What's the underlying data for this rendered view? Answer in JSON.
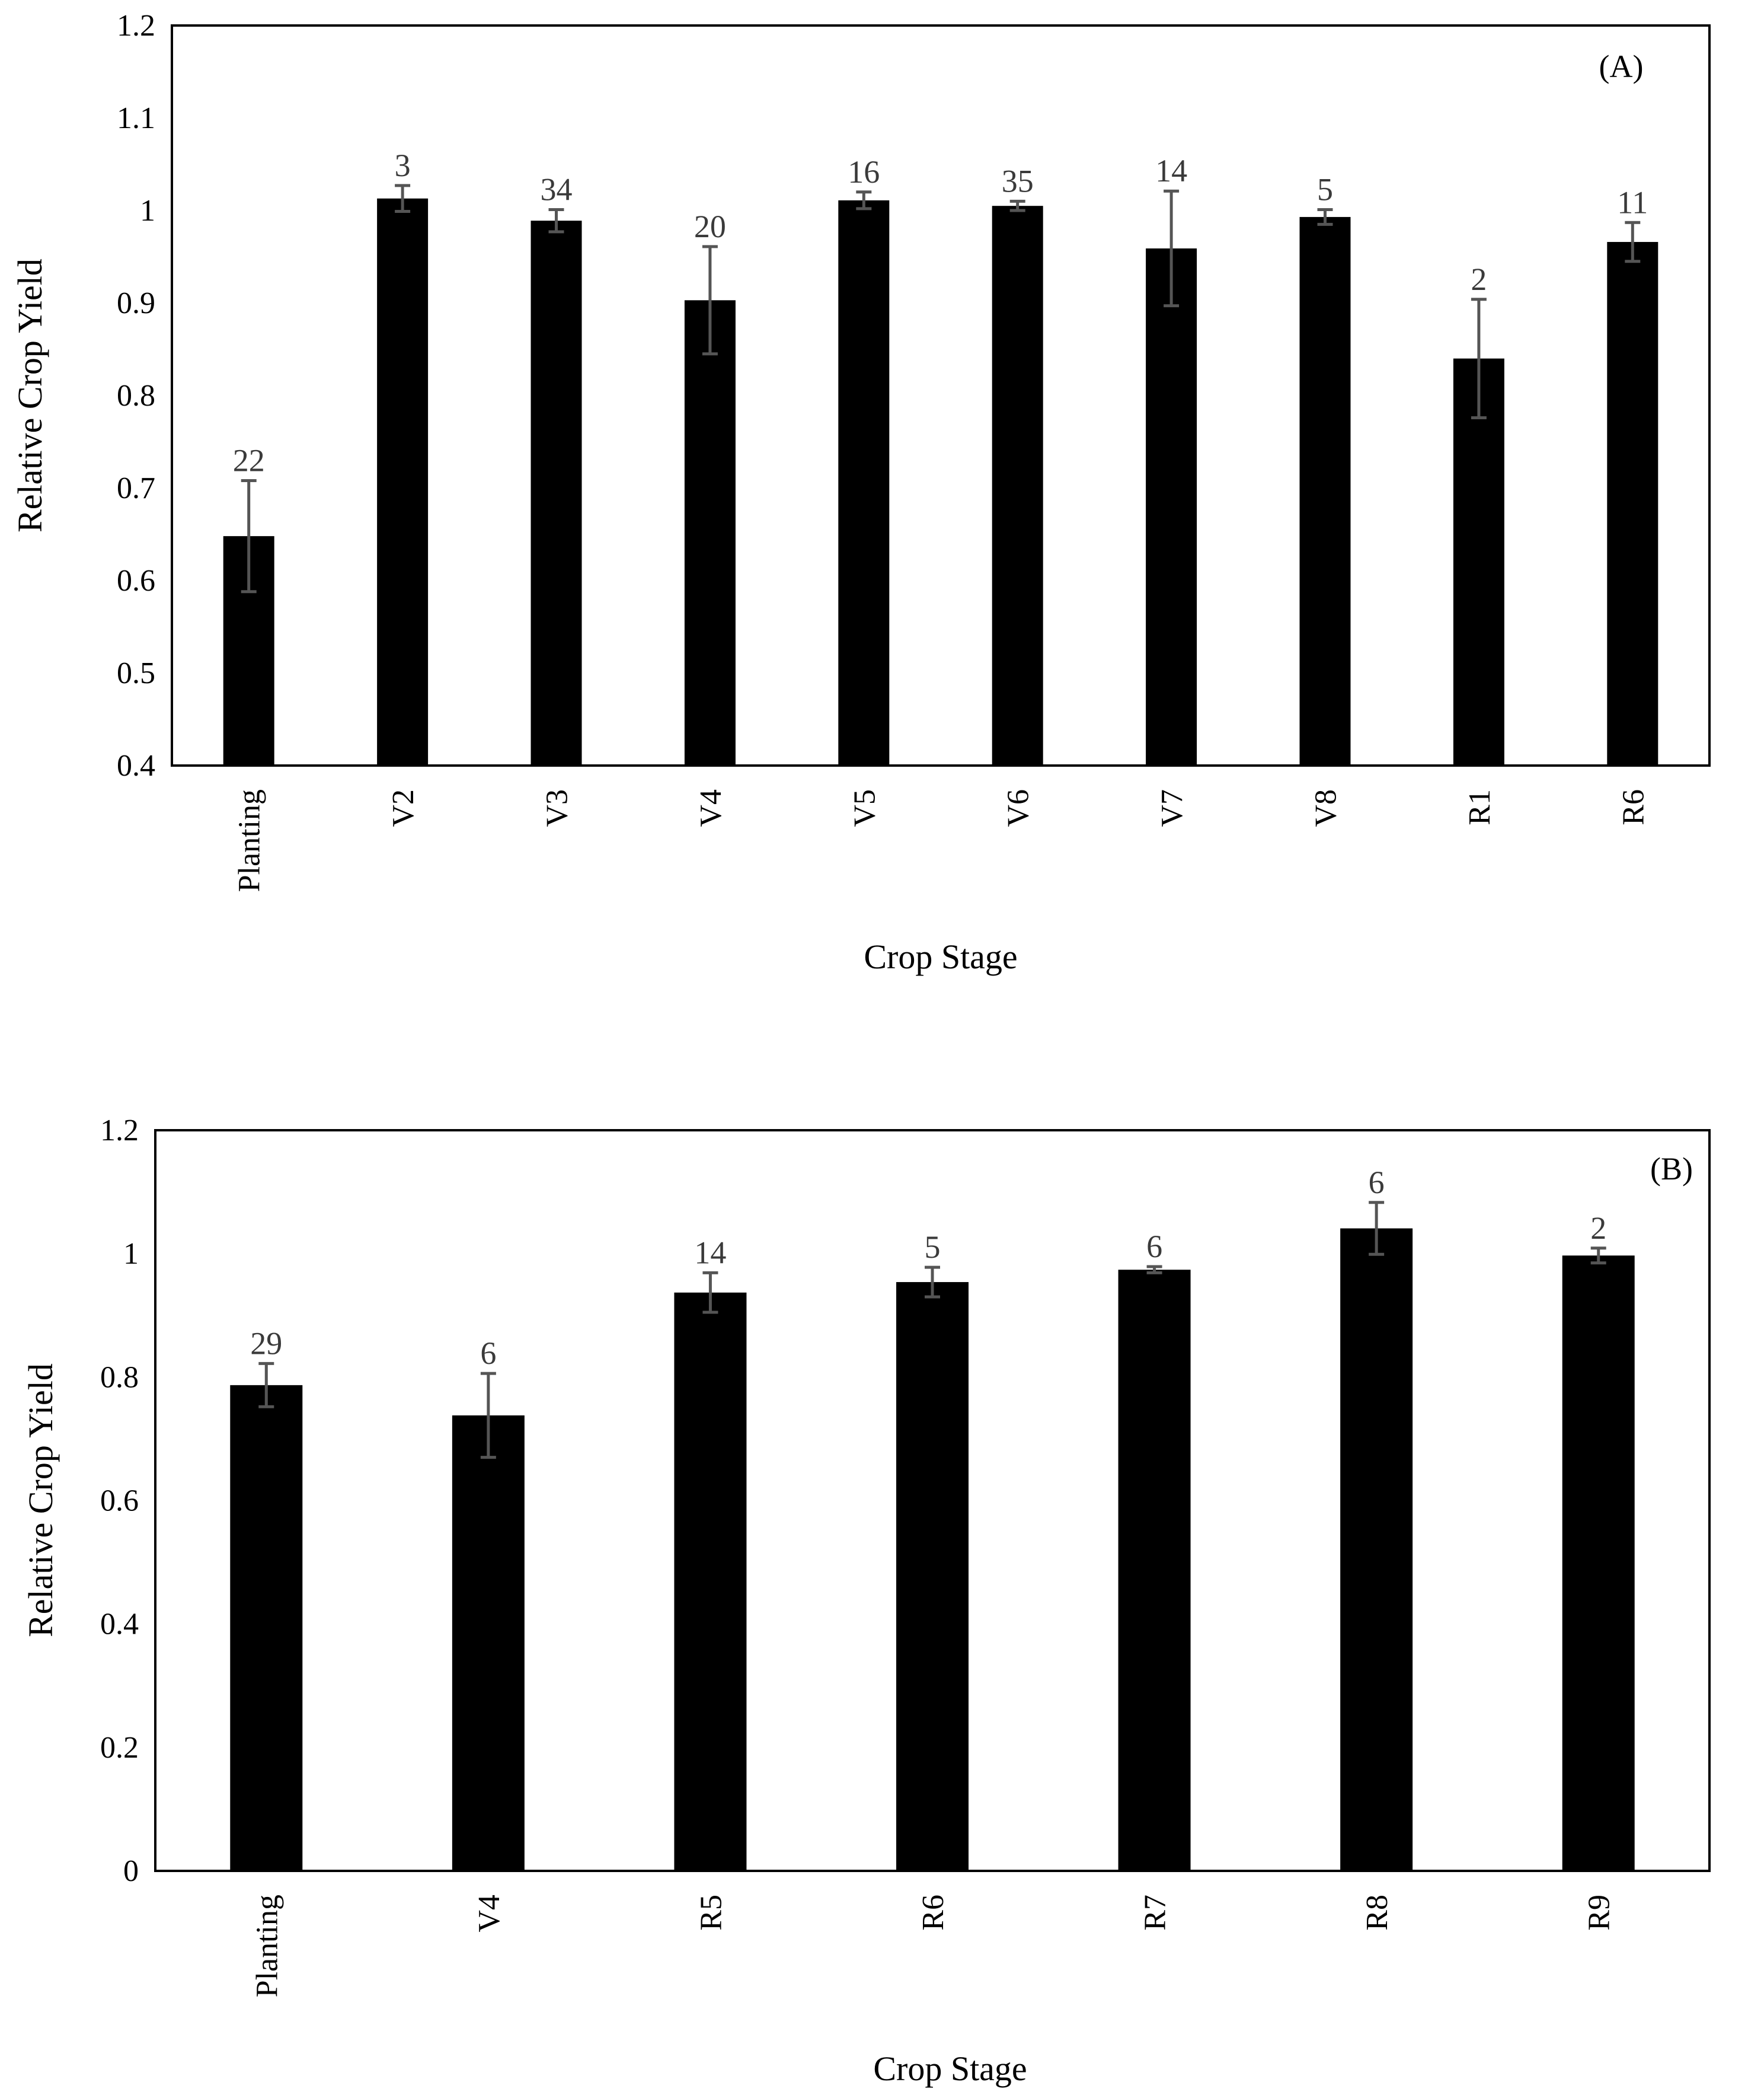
{
  "chart_data": [
    {
      "type": "bar",
      "panel_label": "(A)",
      "xlabel": "Crop Stage",
      "ylabel": "Relative Crop Yield",
      "ylim": [
        0.4,
        1.2
      ],
      "ytick_step": 0.1,
      "ytick_labels": [
        "0.4",
        "0.5",
        "0.6",
        "0.7",
        "0.8",
        "0.9",
        "1",
        "1.1",
        "1.2"
      ],
      "grid": false,
      "bar_color": "#000000",
      "errorbar_color": "#555555",
      "categories": [
        "Planting",
        "V2",
        "V3",
        "V4",
        "V5",
        "V6",
        "V7",
        "V8",
        "R1",
        "R6"
      ],
      "values": [
        0.648,
        1.013,
        0.989,
        0.903,
        1.011,
        1.005,
        0.959,
        0.993,
        0.84,
        0.966
      ],
      "errors": [
        0.06,
        0.014,
        0.012,
        0.058,
        0.009,
        0.005,
        0.062,
        0.008,
        0.064,
        0.021
      ],
      "counts": [
        "22",
        "3",
        "34",
        "20",
        "16",
        "35",
        "14",
        "5",
        "2",
        "11"
      ]
    },
    {
      "type": "bar",
      "panel_label": "(B)",
      "xlabel": "Crop Stage",
      "ylabel": "Relative Crop Yield",
      "ylim": [
        0,
        1.2
      ],
      "ytick_step": 0.2,
      "ytick_labels": [
        "0",
        "0.2",
        "0.4",
        "0.6",
        "0.8",
        "1",
        "1.2"
      ],
      "grid": false,
      "bar_color": "#000000",
      "errorbar_color": "#555555",
      "categories": [
        "Planting",
        "V4",
        "R5",
        "R6",
        "R7",
        "R8",
        "R9"
      ],
      "values": [
        0.787,
        0.738,
        0.937,
        0.954,
        0.974,
        1.041,
        0.997
      ],
      "errors": [
        0.035,
        0.068,
        0.032,
        0.024,
        0.005,
        0.042,
        0.012
      ],
      "counts": [
        "29",
        "6",
        "14",
        "5",
        "6",
        "6",
        "2"
      ]
    }
  ]
}
